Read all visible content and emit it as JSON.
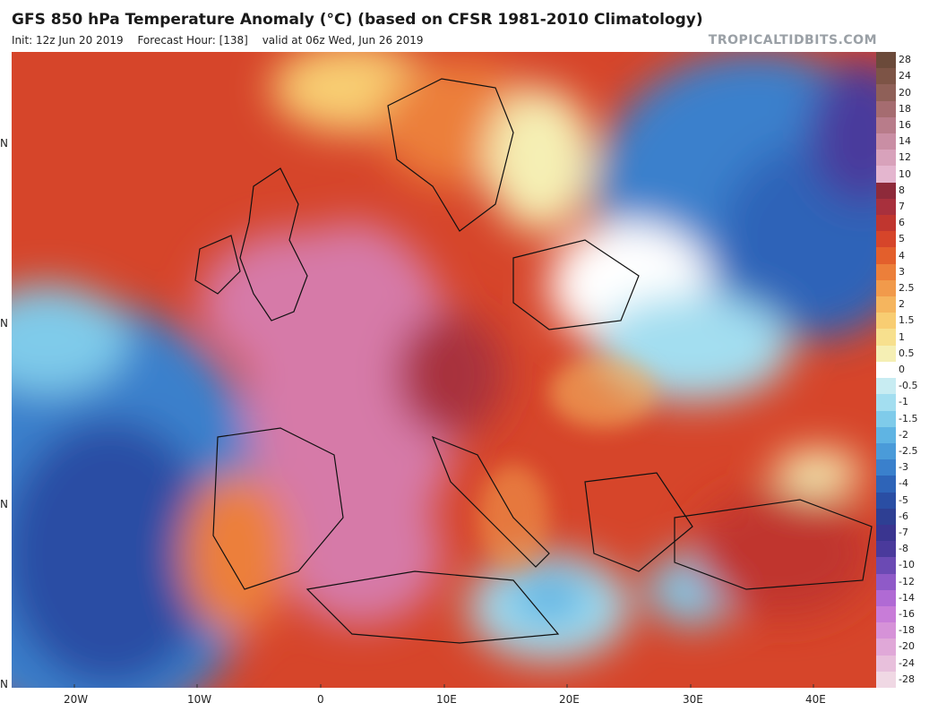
{
  "header": {
    "title": "GFS 850 hPa Temperature Anomaly (°C) (based on CFSR 1981-2010 Climatology)",
    "init": "Init: 12z Jun 20 2019",
    "forecast_hour": "Forecast Hour: [138]",
    "valid": "valid at 06z Wed, Jun 26 2019",
    "brand": "TROPICALTIDBITS.COM"
  },
  "map": {
    "lon_labels": [
      "20W",
      "10W",
      "0",
      "10E",
      "20E",
      "30E",
      "40E"
    ],
    "lat_ticks": [
      "N",
      "N",
      "N",
      "N"
    ]
  },
  "colorbar": {
    "labels": [
      "28",
      "24",
      "20",
      "18",
      "16",
      "14",
      "12",
      "10",
      "8",
      "7",
      "6",
      "5",
      "4",
      "3",
      "2.5",
      "2",
      "1.5",
      "1",
      "0.5",
      "0",
      "-0.5",
      "-1",
      "-1.5",
      "-2",
      "-2.5",
      "-3",
      "-4",
      "-5",
      "-6",
      "-7",
      "-8",
      "-10",
      "-12",
      "-14",
      "-16",
      "-18",
      "-20",
      "-24",
      "-28"
    ],
    "colors": [
      "#6b4a3a",
      "#7d5446",
      "#8f6058",
      "#a56c70",
      "#b87c8a",
      "#c98ea4",
      "#d8a2bb",
      "#e4b6cf",
      "#8e2a3a",
      "#a8303d",
      "#c0362f",
      "#d6452a",
      "#e35f2c",
      "#ec7f3a",
      "#f19a4b",
      "#f5b55e",
      "#f8cd72",
      "#f7e08e",
      "#f5efb4",
      "#ffffff",
      "#c8ecf2",
      "#a3def0",
      "#7fcbea",
      "#5fb4e3",
      "#4a9bd9",
      "#3a80cc",
      "#2e64b8",
      "#2a4ea4",
      "#2e3f93",
      "#3a3590",
      "#4a3a9c",
      "#6b4ab4",
      "#8f5ac8",
      "#b06ad4",
      "#c87cd8",
      "#d692d8",
      "#e0a8d8",
      "#e8c0dc",
      "#f0d8e4"
    ]
  },
  "colors": {
    "warm_strong": "#d6452a",
    "warm_pink": "#d67aa8",
    "cool": "#3a80cc",
    "cool_violet": "#4a3a9c"
  }
}
